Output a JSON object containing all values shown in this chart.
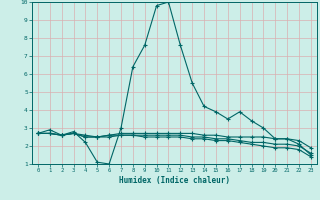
{
  "title": "",
  "xlabel": "Humidex (Indice chaleur)",
  "ylabel": "",
  "xlim": [
    -0.5,
    23.5
  ],
  "ylim": [
    1,
    10
  ],
  "yticks": [
    1,
    2,
    3,
    4,
    5,
    6,
    7,
    8,
    9,
    10
  ],
  "xticks": [
    0,
    1,
    2,
    3,
    4,
    5,
    6,
    7,
    8,
    9,
    10,
    11,
    12,
    13,
    14,
    15,
    16,
    17,
    18,
    19,
    20,
    21,
    22,
    23
  ],
  "bg_color": "#cceee8",
  "grid_color": "#b0d8d0",
  "line_color": "#006666",
  "spine_color": "#006666",
  "lines": [
    {
      "x": [
        0,
        1,
        2,
        3,
        4,
        5,
        6,
        7,
        8,
        9,
        10,
        11,
        12,
        13,
        14,
        15,
        16,
        17,
        18,
        19,
        20,
        21,
        22,
        23
      ],
      "y": [
        2.7,
        2.9,
        2.6,
        2.8,
        2.2,
        1.1,
        1.0,
        3.0,
        6.4,
        7.6,
        9.8,
        10.0,
        7.6,
        5.5,
        4.2,
        3.9,
        3.5,
        3.9,
        3.4,
        3.0,
        2.4,
        2.4,
        2.1,
        1.5
      ]
    },
    {
      "x": [
        0,
        1,
        2,
        3,
        4,
        5,
        6,
        7,
        8,
        9,
        10,
        11,
        12,
        13,
        14,
        15,
        16,
        17,
        18,
        19,
        20,
        21,
        22,
        23
      ],
      "y": [
        2.7,
        2.7,
        2.6,
        2.7,
        2.6,
        2.5,
        2.6,
        2.7,
        2.7,
        2.7,
        2.7,
        2.7,
        2.7,
        2.7,
        2.6,
        2.6,
        2.5,
        2.5,
        2.5,
        2.5,
        2.4,
        2.4,
        2.3,
        1.9
      ]
    },
    {
      "x": [
        0,
        1,
        2,
        3,
        4,
        5,
        6,
        7,
        8,
        9,
        10,
        11,
        12,
        13,
        14,
        15,
        16,
        17,
        18,
        19,
        20,
        21,
        22,
        23
      ],
      "y": [
        2.7,
        2.7,
        2.6,
        2.7,
        2.5,
        2.5,
        2.6,
        2.6,
        2.6,
        2.6,
        2.6,
        2.6,
        2.6,
        2.5,
        2.5,
        2.4,
        2.4,
        2.3,
        2.2,
        2.2,
        2.1,
        2.1,
        2.0,
        1.6
      ]
    },
    {
      "x": [
        0,
        1,
        2,
        3,
        4,
        5,
        6,
        7,
        8,
        9,
        10,
        11,
        12,
        13,
        14,
        15,
        16,
        17,
        18,
        19,
        20,
        21,
        22,
        23
      ],
      "y": [
        2.7,
        2.7,
        2.6,
        2.7,
        2.5,
        2.5,
        2.5,
        2.6,
        2.6,
        2.5,
        2.5,
        2.5,
        2.5,
        2.4,
        2.4,
        2.3,
        2.3,
        2.2,
        2.1,
        2.0,
        1.9,
        1.9,
        1.8,
        1.4
      ]
    }
  ]
}
